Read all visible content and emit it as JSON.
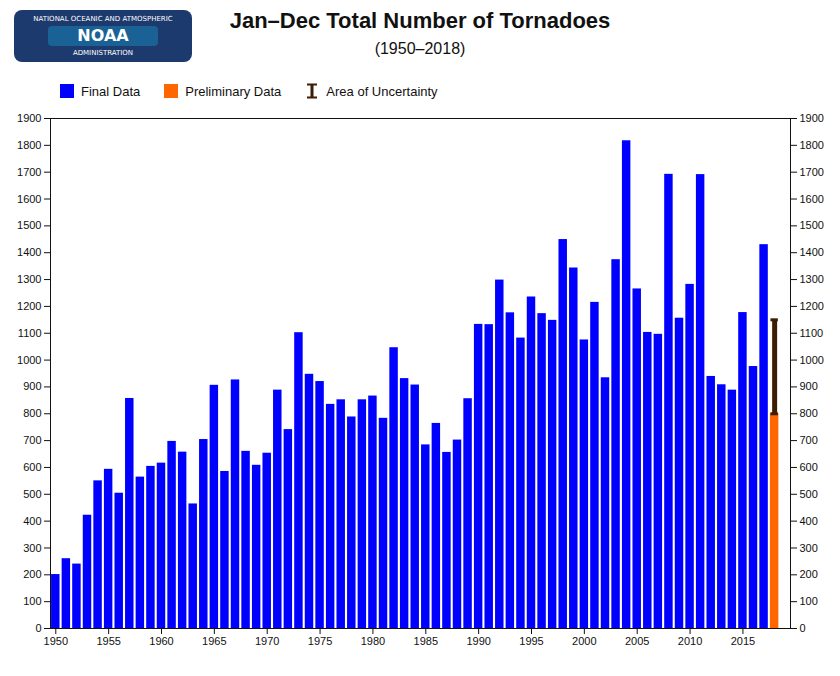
{
  "chart_data": {
    "type": "bar",
    "title": "Jan–Dec Total Number of Tornadoes",
    "subtitle": "(1950–2018)",
    "annotations": [
      "NATIONAL OCEANIC AND ATMOSPHERIC",
      "NOAA",
      "ADMINISTRATION"
    ],
    "x": [
      1950,
      1951,
      1952,
      1953,
      1954,
      1955,
      1956,
      1957,
      1958,
      1959,
      1960,
      1961,
      1962,
      1963,
      1964,
      1965,
      1966,
      1967,
      1968,
      1969,
      1970,
      1971,
      1972,
      1973,
      1974,
      1975,
      1976,
      1977,
      1978,
      1979,
      1980,
      1981,
      1982,
      1983,
      1984,
      1985,
      1986,
      1987,
      1988,
      1989,
      1990,
      1991,
      1992,
      1993,
      1994,
      1995,
      1996,
      1997,
      1998,
      1999,
      2000,
      2001,
      2002,
      2003,
      2004,
      2005,
      2006,
      2007,
      2008,
      2009,
      2010,
      2011,
      2012,
      2013,
      2014,
      2015,
      2016,
      2017,
      2018
    ],
    "series": [
      {
        "name": "Final Data",
        "color": "#0000ff",
        "values": [
          201,
          260,
          240,
          422,
          550,
          593,
          504,
          857,
          564,
          604,
          616,
          697,
          657,
          464,
          704,
          906,
          585,
          926,
          660,
          608,
          653,
          888,
          741,
          1102,
          947,
          920,
          835,
          852,
          788,
          852,
          866,
          783,
          1046,
          931,
          907,
          684,
          764,
          656,
          702,
          856,
          1133,
          1132,
          1298,
          1176,
          1082,
          1235,
          1173,
          1148,
          1449,
          1343,
          1075,
          1215,
          934,
          1374,
          1817,
          1265,
          1103,
          1096,
          1692,
          1156,
          1282,
          1691,
          939,
          908,
          888,
          1177,
          976,
          1430,
          null
        ]
      },
      {
        "name": "Preliminary Data",
        "color": "#ff6600",
        "values": [
          null,
          null,
          null,
          null,
          null,
          null,
          null,
          null,
          null,
          null,
          null,
          null,
          null,
          null,
          null,
          null,
          null,
          null,
          null,
          null,
          null,
          null,
          null,
          null,
          null,
          null,
          null,
          null,
          null,
          null,
          null,
          null,
          null,
          null,
          null,
          null,
          null,
          null,
          null,
          null,
          null,
          null,
          null,
          null,
          null,
          null,
          null,
          null,
          null,
          null,
          null,
          null,
          null,
          null,
          null,
          null,
          null,
          null,
          null,
          null,
          null,
          null,
          null,
          null,
          null,
          null,
          null,
          null,
          800
        ]
      }
    ],
    "error_bars": [
      {
        "name": "Area of Uncertainty",
        "color": "#3d1c02",
        "x": 2018,
        "low": 800,
        "high": 1150
      }
    ],
    "xlim": [
      1949.5,
      2019.5
    ],
    "xticks": [
      1950,
      1955,
      1960,
      1965,
      1970,
      1975,
      1980,
      1985,
      1990,
      1995,
      2000,
      2005,
      2010,
      2015
    ],
    "ylim": [
      0,
      1900
    ],
    "yticks": [
      0,
      100,
      200,
      300,
      400,
      500,
      600,
      700,
      800,
      900,
      1000,
      1100,
      1200,
      1300,
      1400,
      1500,
      1600,
      1700,
      1800,
      1900
    ],
    "grid": false,
    "legend": "upper left"
  }
}
